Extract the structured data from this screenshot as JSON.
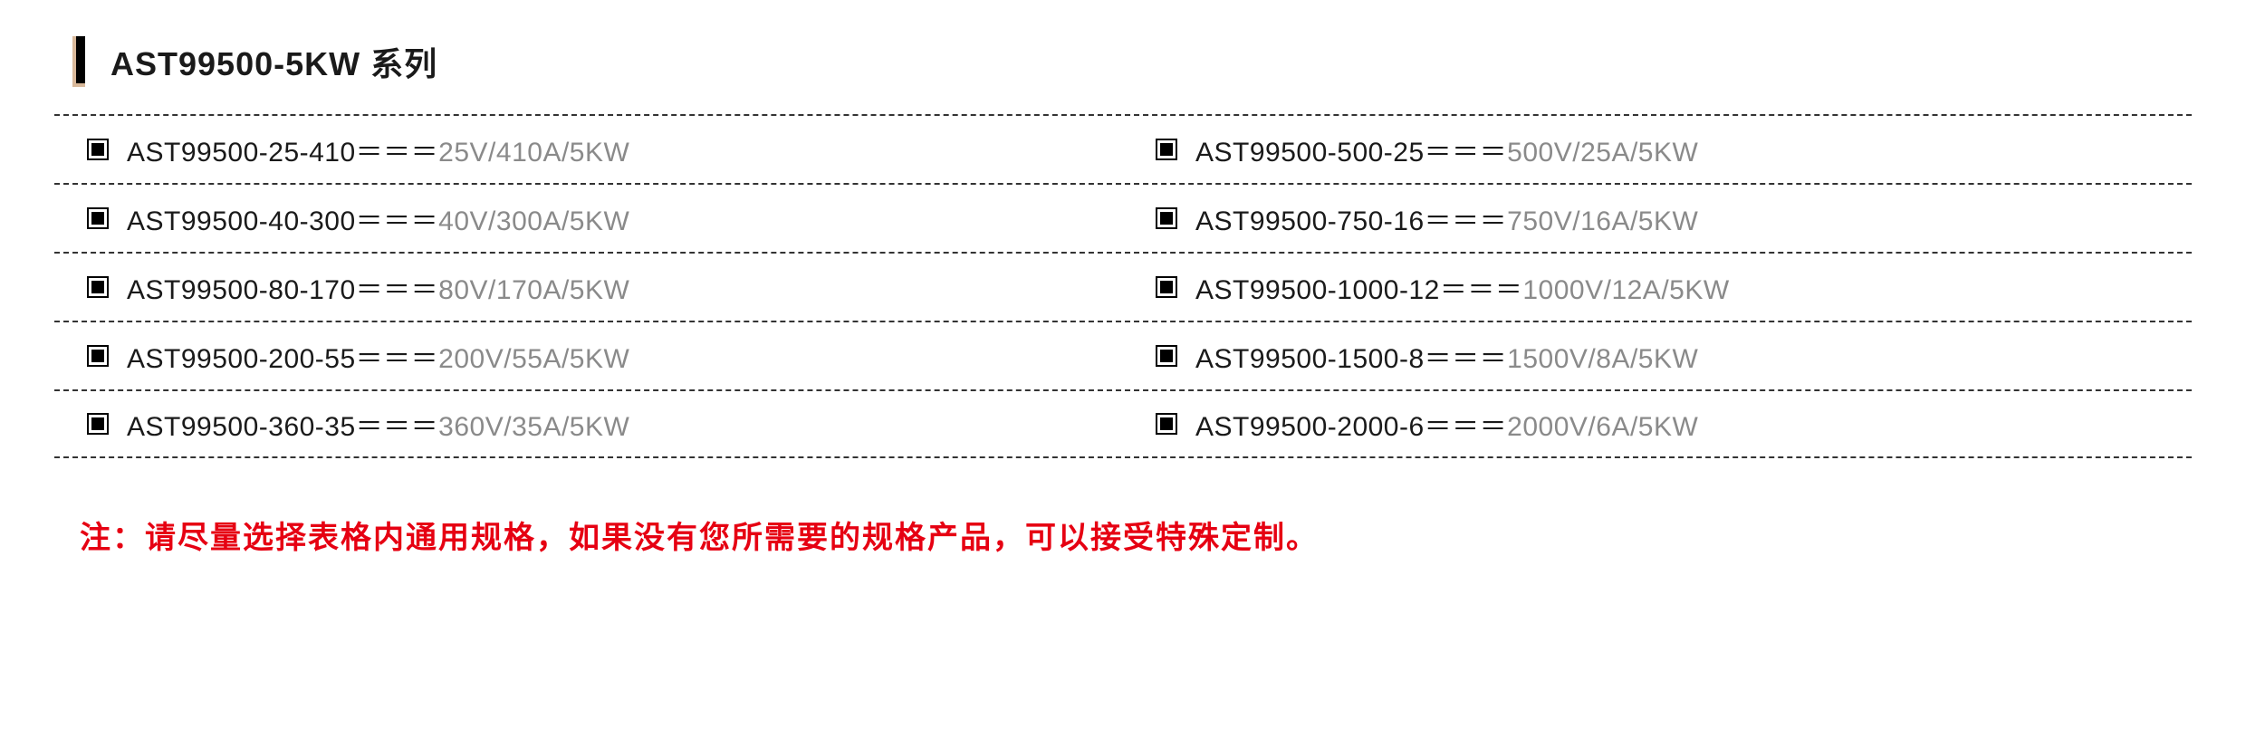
{
  "header": {
    "title": "AST99500-5KW 系列"
  },
  "colors": {
    "text_primary": "#1a1a1a",
    "text_secondary": "#8a8a8a",
    "accent_bar_border": "#d8b89a",
    "note_color": "#e60012",
    "border_color": "#333333",
    "background": "#ffffff"
  },
  "typography": {
    "title_fontsize": 36,
    "cell_fontsize": 30,
    "note_fontsize": 34
  },
  "table": {
    "rows": [
      {
        "left": {
          "model": "AST99500-25-410＝＝＝",
          "spec": "25V/410A/5KW"
        },
        "right": {
          "model": "AST99500-500-25＝＝＝",
          "spec": "500V/25A/5KW"
        }
      },
      {
        "left": {
          "model": "AST99500-40-300＝＝＝",
          "spec": "40V/300A/5KW"
        },
        "right": {
          "model": "AST99500-750-16＝＝＝",
          "spec": "750V/16A/5KW"
        }
      },
      {
        "left": {
          "model": "AST99500-80-170＝＝＝",
          "spec": "80V/170A/5KW"
        },
        "right": {
          "model": "AST99500-1000-12＝＝＝",
          "spec": "1000V/12A/5KW"
        }
      },
      {
        "left": {
          "model": "AST99500-200-55＝＝＝",
          "spec": "200V/55A/5KW"
        },
        "right": {
          "model": "AST99500-1500-8＝＝＝",
          "spec": "1500V/8A/5KW"
        }
      },
      {
        "left": {
          "model": "AST99500-360-35＝＝＝",
          "spec": "360V/35A/5KW"
        },
        "right": {
          "model": "AST99500-2000-6＝＝＝",
          "spec": "2000V/6A/5KW"
        }
      }
    ]
  },
  "note": "注：请尽量选择表格内通用规格，如果没有您所需要的规格产品，可以接受特殊定制。"
}
